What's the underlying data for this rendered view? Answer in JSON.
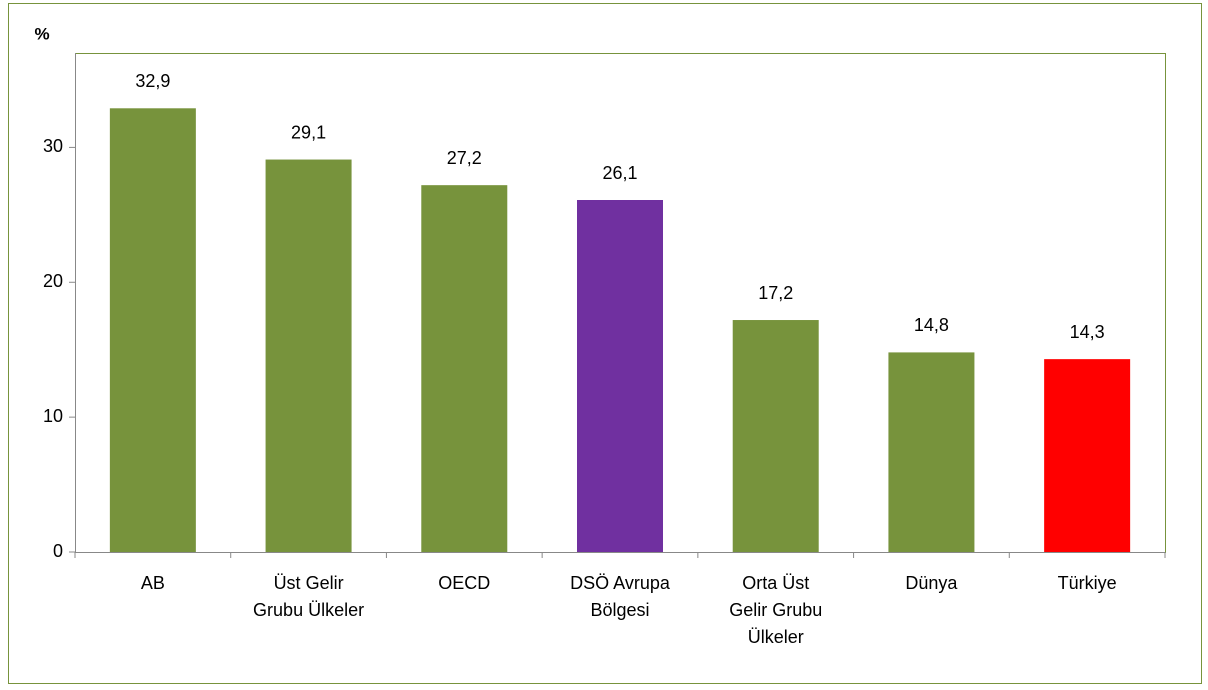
{
  "chart_data": {
    "type": "bar",
    "ylabel": "%",
    "categories": [
      "AB",
      "Üst Gelir Grubu Ülkeler",
      "OECD",
      "DSÖ Avrupa Bölgesi",
      "Orta Üst Gelir Grubu Ülkeler",
      "Dünya",
      "Türkiye"
    ],
    "values": [
      32.9,
      29.1,
      27.2,
      26.1,
      17.2,
      14.8,
      14.3
    ],
    "value_labels": [
      "32,9",
      "29,1",
      "27,2",
      "26,1",
      "17,2",
      "14,8",
      "14,3"
    ],
    "colors": [
      "#77933c",
      "#77933c",
      "#77933c",
      "#7030a0",
      "#77933c",
      "#77933c",
      "#ff0000"
    ],
    "ylim": [
      0,
      37
    ],
    "yticks": [
      0,
      10,
      20,
      30
    ],
    "grid": false
  }
}
